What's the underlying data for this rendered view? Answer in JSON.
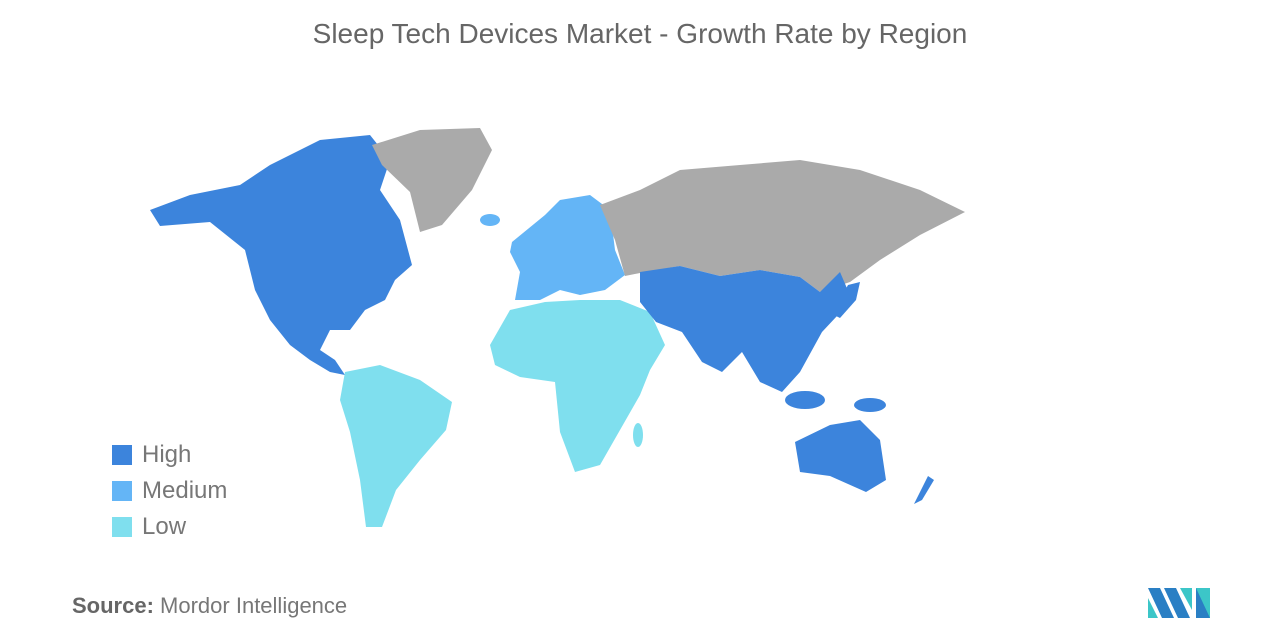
{
  "title": "Sleep Tech Devices Market - Growth Rate by Region",
  "legend": [
    {
      "label": "High",
      "color": "#3c84dc"
    },
    {
      "label": "Medium",
      "color": "#64b5f6"
    },
    {
      "label": "Low",
      "color": "#7fdfee"
    }
  ],
  "no_data_color": "#aaaaaa",
  "regions": {
    "North America": "High",
    "Asia-Pacific": "High",
    "Europe": "Medium",
    "South America": "Low",
    "Middle East and Africa": "Low"
  },
  "source": {
    "label": "Source:",
    "value": "Mordor Intelligence"
  },
  "logo": "Mordor Intelligence logo"
}
